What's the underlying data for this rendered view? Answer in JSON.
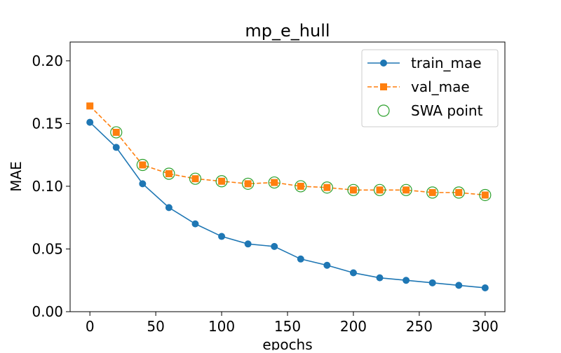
{
  "chart_data": {
    "type": "line",
    "title": "mp_e_hull",
    "xlabel": "epochs",
    "ylabel": "MAE",
    "xlim": [
      -15,
      315
    ],
    "ylim": [
      0,
      0.215
    ],
    "x_ticks": [
      0,
      50,
      100,
      150,
      200,
      250,
      300
    ],
    "x_tick_labels": [
      "0",
      "50",
      "100",
      "150",
      "200",
      "250",
      "300"
    ],
    "y_ticks": [
      0,
      0.05,
      0.1,
      0.15,
      0.2
    ],
    "y_tick_labels": [
      "0.00",
      "0.05",
      "0.10",
      "0.15",
      "0.20"
    ],
    "grid": false,
    "legend_position": "top-right",
    "x": [
      0,
      20,
      40,
      60,
      80,
      100,
      120,
      140,
      160,
      180,
      200,
      220,
      240,
      260,
      280,
      300
    ],
    "series": [
      {
        "name": "train_mae",
        "color": "#1f77b4",
        "line_style": "solid",
        "marker": "circle",
        "values": [
          0.151,
          0.131,
          0.102,
          0.083,
          0.07,
          0.06,
          0.054,
          0.052,
          0.042,
          0.037,
          0.031,
          0.027,
          0.025,
          0.023,
          0.021,
          0.019
        ]
      },
      {
        "name": "val_mae",
        "color": "#ff7f0e",
        "line_style": "dashed",
        "marker": "square",
        "values": [
          0.164,
          0.143,
          0.117,
          0.11,
          0.106,
          0.104,
          0.102,
          0.103,
          0.1,
          0.099,
          0.097,
          0.097,
          0.097,
          0.095,
          0.095,
          0.093
        ]
      },
      {
        "name": "SWA point",
        "color": "#2ca02c",
        "line_style": "none",
        "marker": "hollow-circle",
        "x": [
          20,
          40,
          60,
          80,
          100,
          120,
          140,
          160,
          180,
          200,
          220,
          240,
          260,
          280,
          300
        ],
        "values": [
          0.143,
          0.117,
          0.11,
          0.106,
          0.104,
          0.102,
          0.103,
          0.1,
          0.099,
          0.097,
          0.097,
          0.097,
          0.095,
          0.095,
          0.093
        ]
      }
    ]
  }
}
